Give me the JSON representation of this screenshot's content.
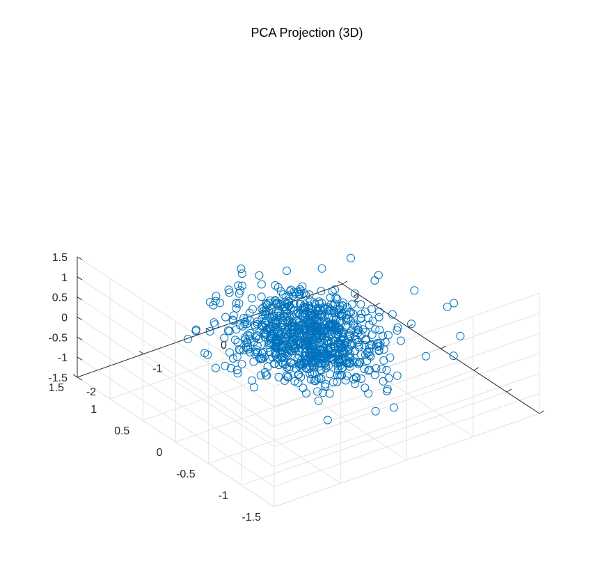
{
  "chart_data": {
    "type": "scatter",
    "projection": "3d",
    "title": "PCA Projection (3D)",
    "xlabel": "",
    "ylabel": "",
    "zlabel": "",
    "grid": true,
    "legend": "none",
    "marker": "open circle",
    "color": "#0072BD",
    "axes": {
      "x": {
        "lim": [
          -2,
          2
        ],
        "ticks": [
          -2,
          -1,
          0,
          1,
          2
        ],
        "tick_labels": [
          "-2",
          "-1",
          "0",
          "1",
          "2"
        ]
      },
      "y": {
        "lim": [
          -1.5,
          1.5
        ],
        "ticks": [
          -1.5,
          -1,
          -0.5,
          0,
          0.5,
          1,
          1.5
        ],
        "tick_labels": [
          "-1.5",
          "-1",
          "-0.5",
          "0",
          "0.5",
          "1",
          "1.5"
        ]
      },
      "z": {
        "lim": [
          -1.5,
          1.5
        ],
        "ticks": [
          -1.5,
          -1,
          -0.5,
          0,
          0.5,
          1,
          1.5
        ],
        "tick_labels": [
          "-1.5",
          "-1",
          "-0.5",
          "0",
          "0.5",
          "1",
          "1.5"
        ]
      }
    },
    "point_count_estimate": 900,
    "distribution": {
      "x": {
        "mean": 0.0,
        "std": 0.42
      },
      "y": {
        "mean": 0.0,
        "std": 0.38
      },
      "z": {
        "mean": -0.05,
        "std": 0.32
      }
    },
    "outliers": [
      {
        "x": 1.85,
        "y": -0.35,
        "z": 0.1
      },
      {
        "x": 1.7,
        "y": -0.4,
        "z": 0.15
      },
      {
        "x": 1.5,
        "y": -0.1,
        "z": 0.35
      },
      {
        "x": 1.2,
        "y": 0.2,
        "z": 0.45
      },
      {
        "x": 0.8,
        "y": 0.6,
        "z": 0.55
      },
      {
        "x": 0.2,
        "y": 0.95,
        "z": 0.35
      },
      {
        "x": -0.2,
        "y": 1.0,
        "z": 0.1
      },
      {
        "x": -0.9,
        "y": 0.8,
        "z": -0.2
      },
      {
        "x": -1.1,
        "y": 0.3,
        "z": -0.5
      },
      {
        "x": -0.6,
        "y": -0.9,
        "z": -0.8
      },
      {
        "x": 0.3,
        "y": -1.0,
        "z": -0.9
      },
      {
        "x": 0.6,
        "y": -0.6,
        "z": -1.05
      },
      {
        "x": 1.3,
        "y": -0.9,
        "z": -0.3
      },
      {
        "x": 1.6,
        "y": -0.7,
        "z": -0.2
      },
      {
        "x": -0.5,
        "y": 0.9,
        "z": 0.3
      }
    ]
  }
}
